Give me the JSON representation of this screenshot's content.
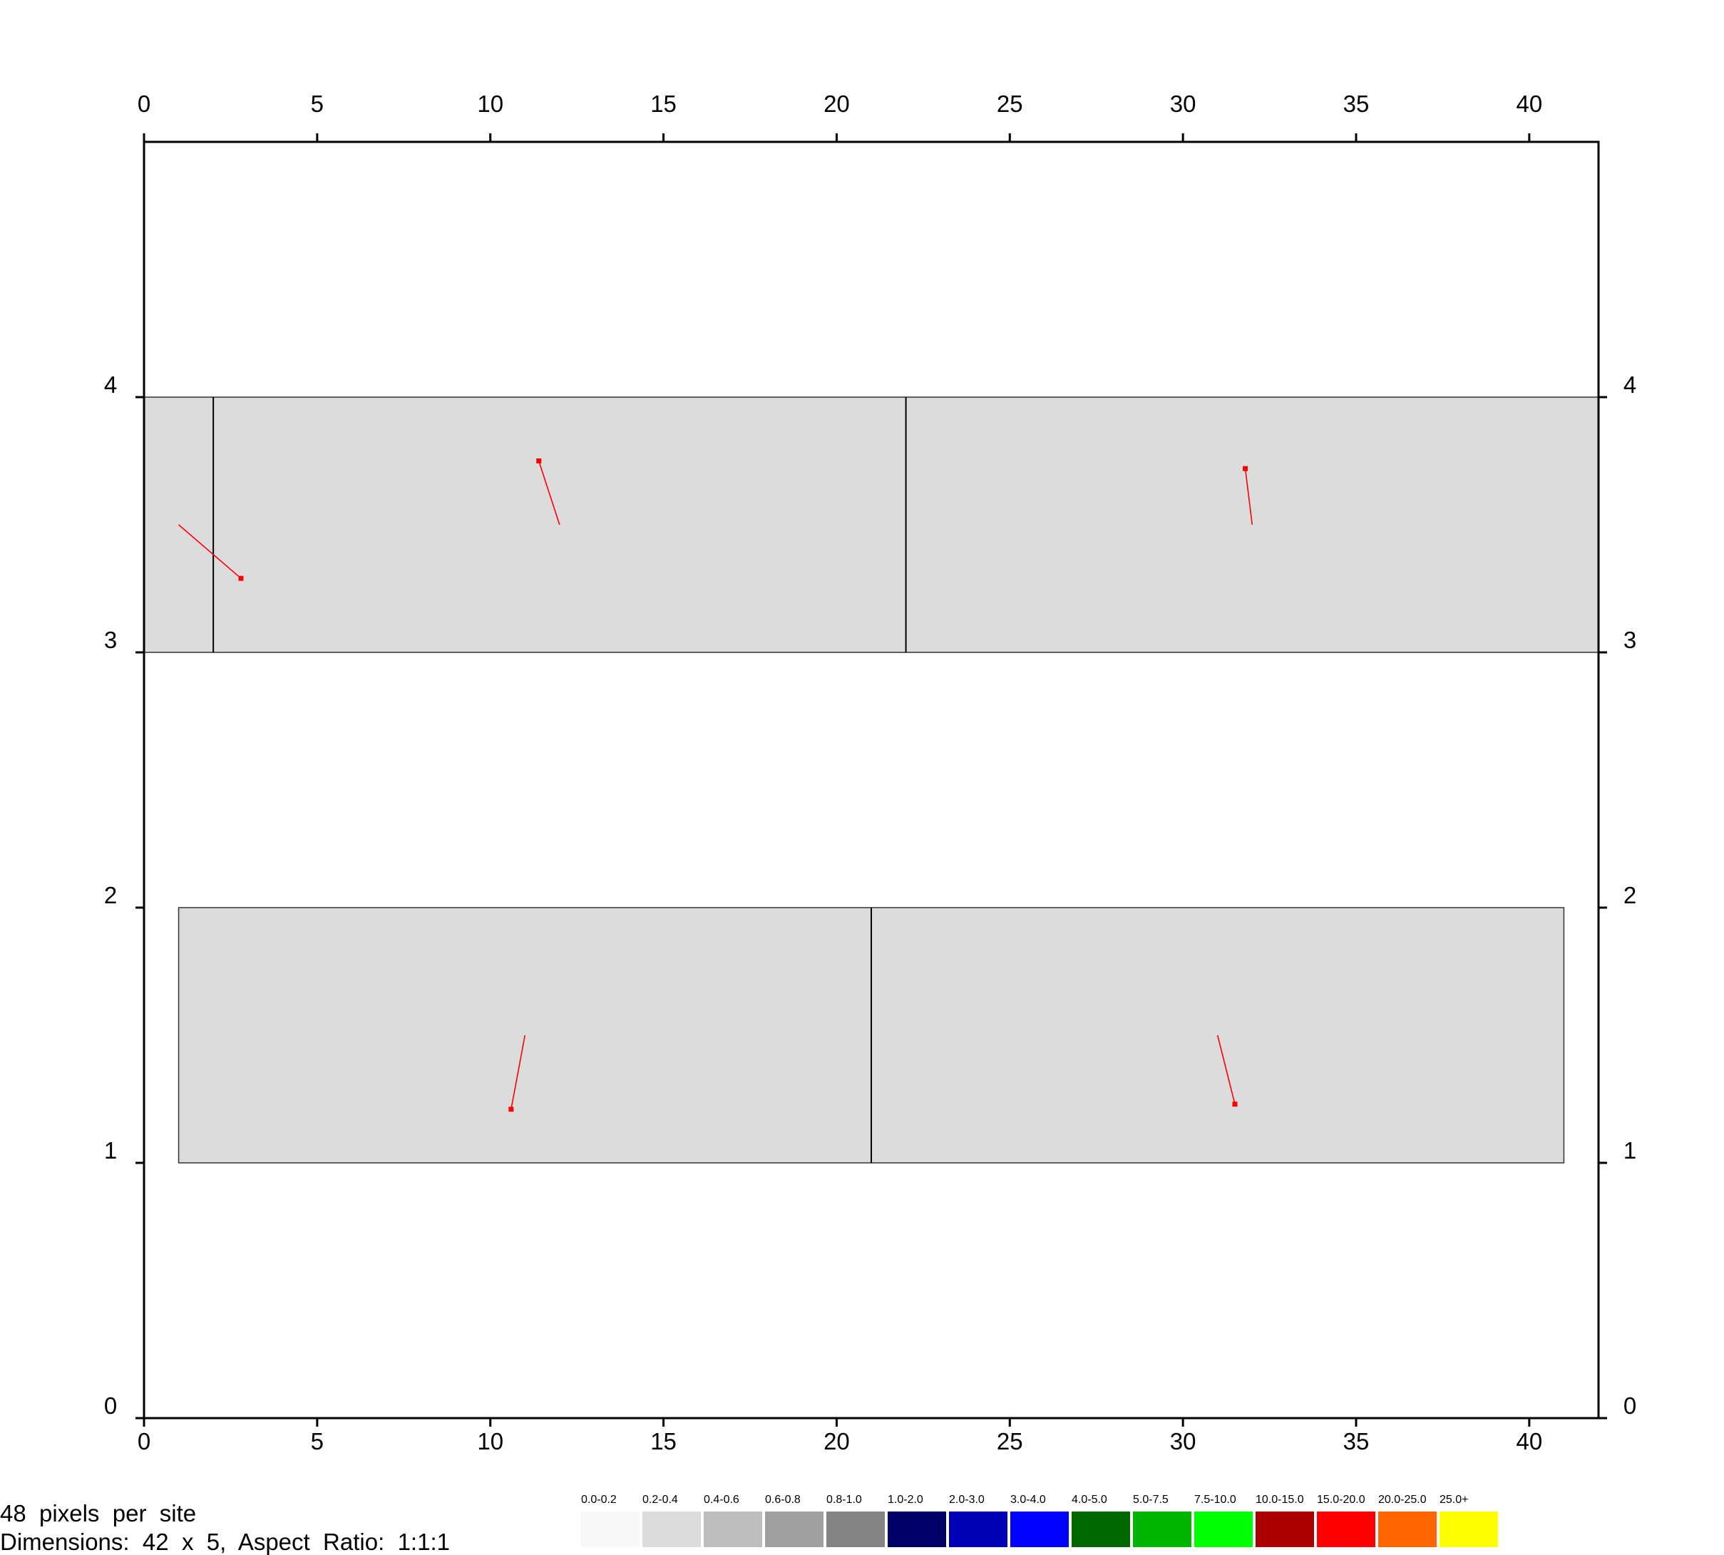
{
  "chart_data": {
    "type": "diagram",
    "x_ticks": [
      0,
      5,
      10,
      15,
      20,
      25,
      30,
      35,
      40
    ],
    "y_ticks": [
      0,
      1,
      2,
      3,
      4
    ],
    "xlim": [
      0,
      42
    ],
    "ylim": [
      0,
      5
    ],
    "blocks": [
      {
        "x0": 0,
        "x1": 42,
        "y0": 3,
        "y1": 4,
        "dividers": [
          2,
          22
        ]
      },
      {
        "x0": 1,
        "x1": 41,
        "y0": 1,
        "y1": 2,
        "dividers": [
          21
        ]
      }
    ],
    "vectors": [
      {
        "x0": 1.0,
        "y0": 3.5,
        "x1": 2.8,
        "y1": 3.29
      },
      {
        "x0": 12.0,
        "y0": 3.5,
        "x1": 11.4,
        "y1": 3.75
      },
      {
        "x0": 32.0,
        "y0": 3.5,
        "x1": 31.8,
        "y1": 3.72
      },
      {
        "x0": 11.0,
        "y0": 1.5,
        "x1": 10.6,
        "y1": 1.21
      },
      {
        "x0": 31.0,
        "y0": 1.5,
        "x1": 31.5,
        "y1": 1.23
      }
    ],
    "block_color": "#dcdcdc",
    "vector_color": "#ff0000"
  },
  "legend": [
    {
      "label": "0.0-0.2",
      "color": "#f8f8f8"
    },
    {
      "label": "0.2-0.4",
      "color": "#dcdcdc"
    },
    {
      "label": "0.4-0.6",
      "color": "#bdbdbd"
    },
    {
      "label": "0.6-0.8",
      "color": "#a0a0a0"
    },
    {
      "label": "0.8-1.0",
      "color": "#848484"
    },
    {
      "label": "1.0-2.0",
      "color": "#000066"
    },
    {
      "label": "2.0-3.0",
      "color": "#0000b4"
    },
    {
      "label": "3.0-4.0",
      "color": "#0000ff"
    },
    {
      "label": "4.0-5.0",
      "color": "#006600"
    },
    {
      "label": "5.0-7.5",
      "color": "#00b400"
    },
    {
      "label": "7.5-10.0",
      "color": "#00ff00"
    },
    {
      "label": "10.0-15.0",
      "color": "#aa0000"
    },
    {
      "label": "15.0-20.0",
      "color": "#ff0000"
    },
    {
      "label": "20.0-25.0",
      "color": "#ff6600"
    },
    {
      "label": "25.0+",
      "color": "#ffff00"
    }
  ],
  "footer": {
    "line1": "48  pixels  per  site",
    "line2": "Dimensions:  42  x  5,  Aspect  Ratio:  1:1:1"
  }
}
